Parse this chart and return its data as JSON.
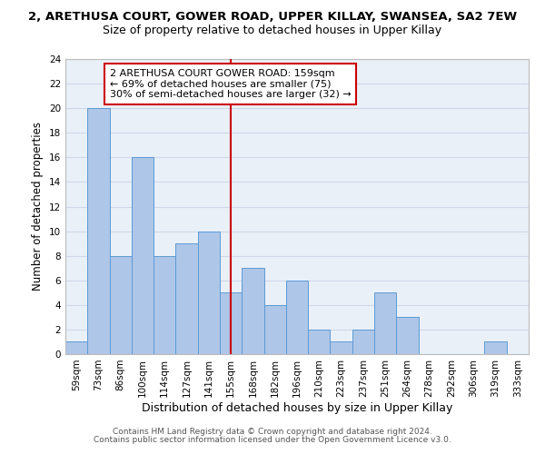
{
  "title_line1": "2, ARETHUSA COURT, GOWER ROAD, UPPER KILLAY, SWANSEA, SA2 7EW",
  "title_line2": "Size of property relative to detached houses in Upper Killay",
  "xlabel": "Distribution of detached houses by size in Upper Killay",
  "ylabel": "Number of detached properties",
  "categories": [
    "59sqm",
    "73sqm",
    "86sqm",
    "100sqm",
    "114sqm",
    "127sqm",
    "141sqm",
    "155sqm",
    "168sqm",
    "182sqm",
    "196sqm",
    "210sqm",
    "223sqm",
    "237sqm",
    "251sqm",
    "264sqm",
    "278sqm",
    "292sqm",
    "306sqm",
    "319sqm",
    "333sqm"
  ],
  "values": [
    1,
    20,
    8,
    16,
    8,
    9,
    10,
    5,
    7,
    4,
    6,
    2,
    1,
    2,
    5,
    3,
    0,
    0,
    0,
    1,
    0
  ],
  "bar_color": "#aec6e8",
  "bar_edge_color": "#5b9bd5",
  "grid_color": "#d0d8e8",
  "bg_color": "#eaf0f8",
  "red_line_index": 7,
  "red_line_color": "#cc0000",
  "annotation_text": "2 ARETHUSA COURT GOWER ROAD: 159sqm\n← 69% of detached houses are smaller (75)\n30% of semi-detached houses are larger (32) →",
  "annotation_box_color": "#ffffff",
  "annotation_box_edge": "#cc0000",
  "ylim": [
    0,
    24
  ],
  "yticks": [
    0,
    2,
    4,
    6,
    8,
    10,
    12,
    14,
    16,
    18,
    20,
    22,
    24
  ],
  "footer_line1": "Contains HM Land Registry data © Crown copyright and database right 2024.",
  "footer_line2": "Contains public sector information licensed under the Open Government Licence v3.0.",
  "title1_fontsize": 9.5,
  "title2_fontsize": 9,
  "xlabel_fontsize": 9,
  "ylabel_fontsize": 8.5,
  "tick_fontsize": 7.5,
  "annotation_fontsize": 8,
  "footer_fontsize": 6.5
}
